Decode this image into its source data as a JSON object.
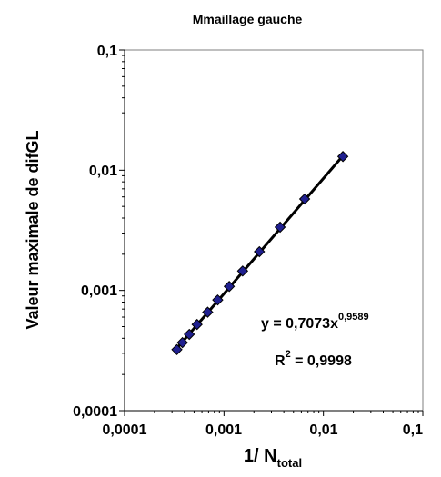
{
  "chart_data": {
    "type": "scatter",
    "title": "Mmaillage gauche",
    "xlabel": "1/ N",
    "xlabel_subscript": "total",
    "ylabel": "Valeur maximale de difGL",
    "x_scale": "log",
    "y_scale": "log",
    "xlim": [
      0.0001,
      0.1
    ],
    "ylim": [
      0.0001,
      0.1
    ],
    "x_ticks": [
      "0,0001",
      "0,001",
      "0,01",
      "0,1"
    ],
    "y_ticks": [
      "0,0001",
      "0,001",
      "0,01",
      "0,1"
    ],
    "grid": false,
    "marker_color": "#1f1f8f",
    "trendline_color": "#000000",
    "series": [
      {
        "x": [
          0.000336,
          0.000382,
          0.000448,
          0.000536,
          0.000686,
          0.000865,
          0.00113,
          0.00154,
          0.00227,
          0.00367,
          0.00648,
          0.0157
        ],
        "values": [
          0.000322,
          0.000368,
          0.000431,
          0.000521,
          0.000659,
          0.000833,
          0.00108,
          0.00145,
          0.0021,
          0.00336,
          0.00576,
          0.013
        ]
      }
    ],
    "trendline": {
      "type": "power",
      "coef": 0.7073,
      "exponent": 0.9589,
      "x_range": [
        0.000336,
        0.0157
      ]
    },
    "annotation": {
      "equation_base": "y = 0,7073x",
      "equation_exp": "0,9589",
      "r2_base": "R",
      "r2_exp": "2",
      "r2_value": " = 0,9998"
    }
  }
}
